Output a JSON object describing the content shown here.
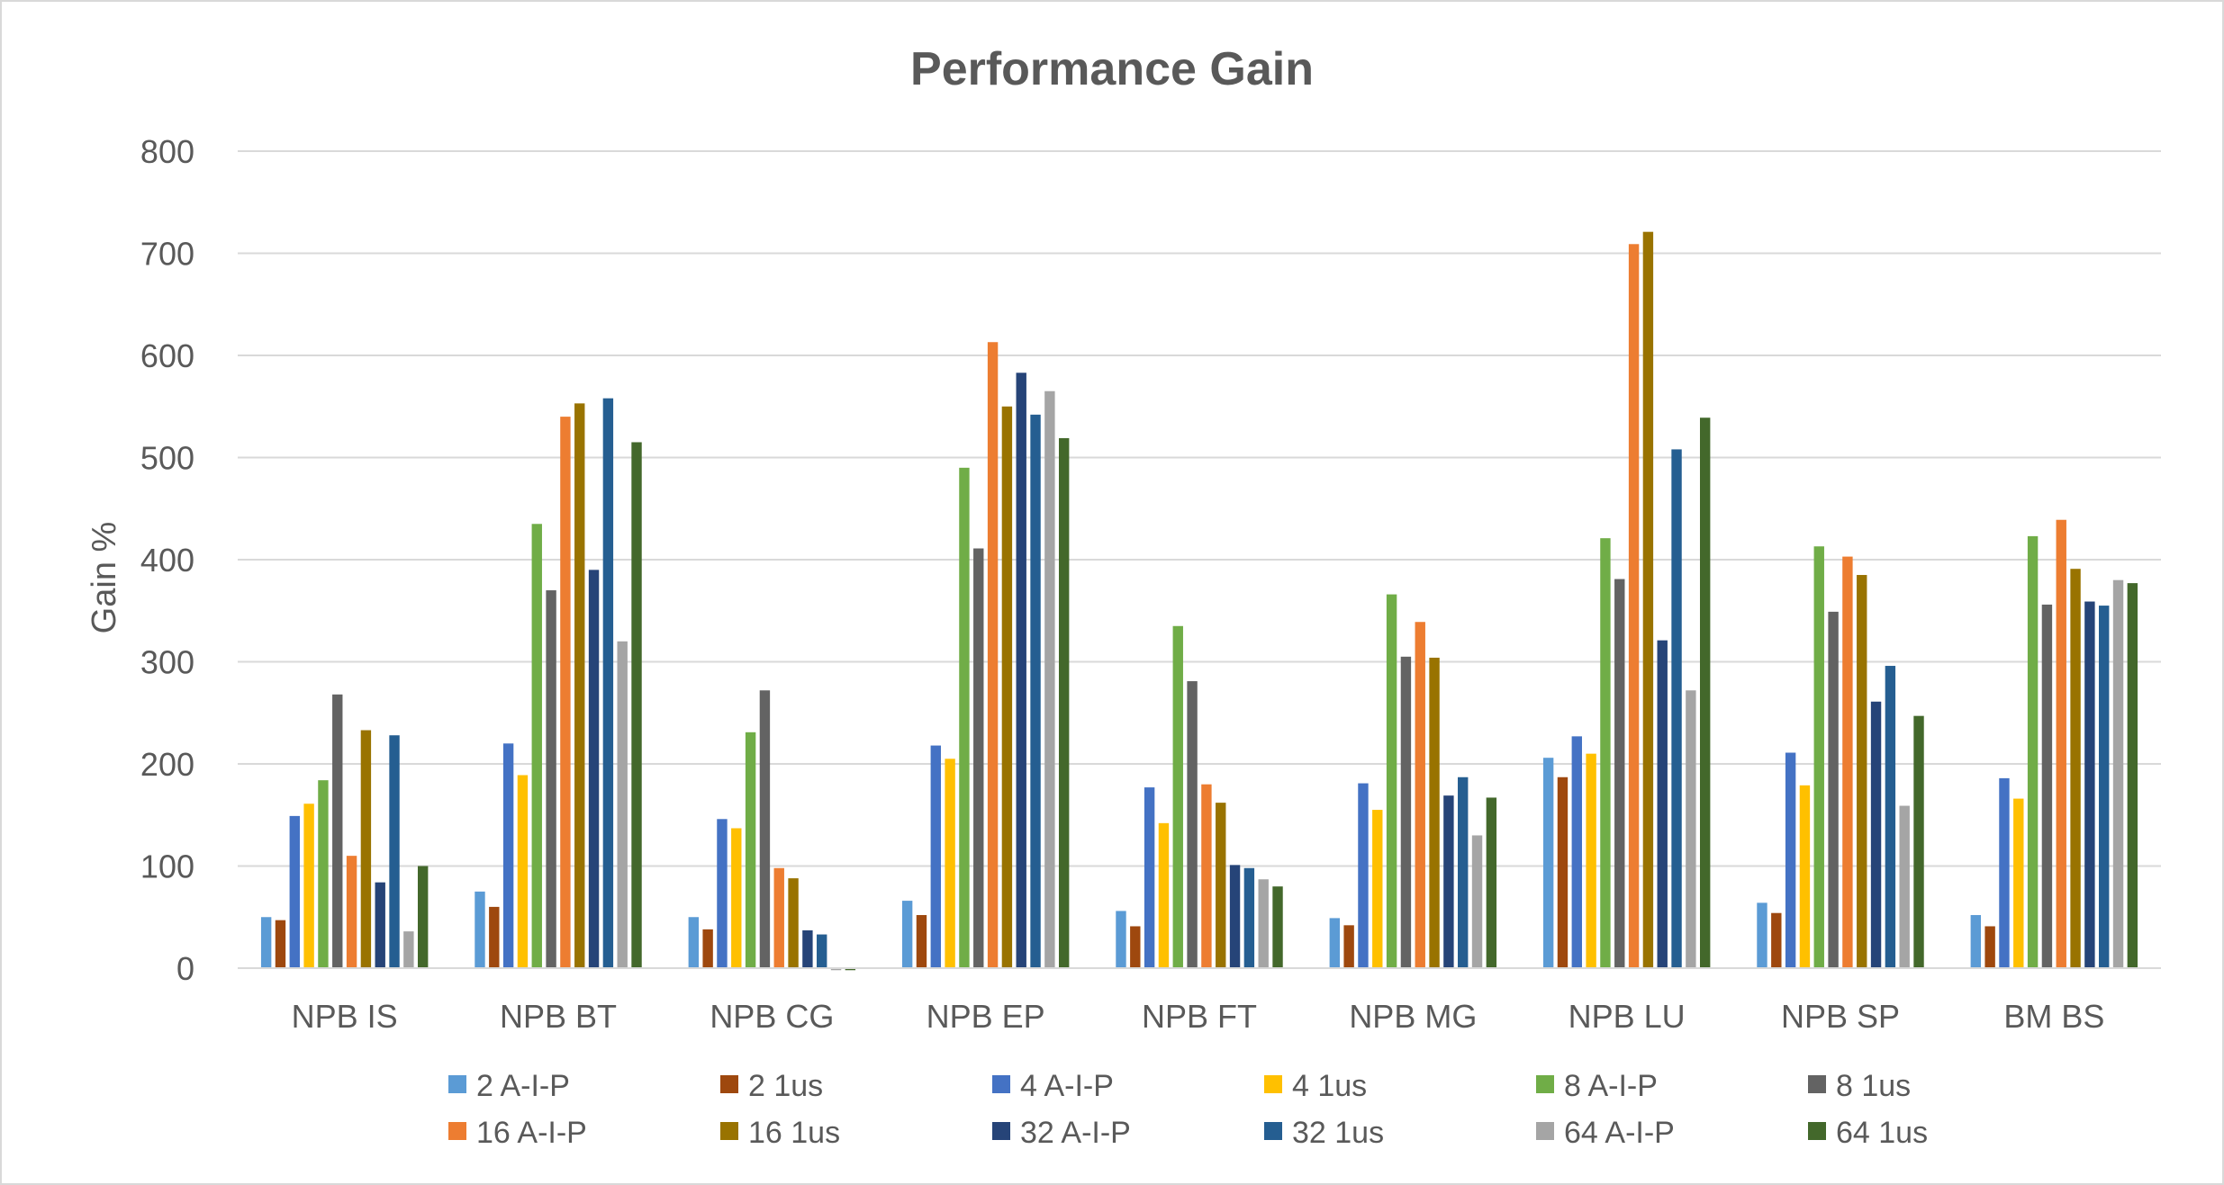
{
  "chart_data": {
    "type": "bar",
    "title": "Performance Gain",
    "xlabel": "",
    "ylabel": "Gain %",
    "ylim": [
      0,
      800
    ],
    "yticks": [
      0,
      100,
      200,
      300,
      400,
      500,
      600,
      700,
      800
    ],
    "grid": true,
    "legend_position": "bottom",
    "categories": [
      "NPB IS",
      "NPB BT",
      "NPB CG",
      "NPB EP",
      "NPB FT",
      "NPB MG",
      "NPB LU",
      "NPB SP",
      "BM BS"
    ],
    "series": [
      {
        "name": "2 A-I-P",
        "color": "#5b9bd5",
        "values": [
          50,
          75,
          50,
          66,
          56,
          49,
          206,
          64,
          52
        ]
      },
      {
        "name": "2 1us",
        "color": "#9e480e",
        "values": [
          47,
          60,
          38,
          52,
          41,
          42,
          187,
          54,
          41
        ]
      },
      {
        "name": "4 A-I-P",
        "color": "#4472c4",
        "values": [
          149,
          220,
          146,
          218,
          177,
          181,
          227,
          211,
          186
        ]
      },
      {
        "name": "4 1us",
        "color": "#ffc000",
        "values": [
          161,
          189,
          137,
          205,
          142,
          155,
          210,
          179,
          166
        ]
      },
      {
        "name": "8 A-I-P",
        "color": "#70ad47",
        "values": [
          184,
          435,
          231,
          490,
          335,
          366,
          421,
          413,
          423
        ]
      },
      {
        "name": "8 1us",
        "color": "#636363",
        "values": [
          268,
          370,
          272,
          411,
          281,
          305,
          381,
          349,
          356
        ]
      },
      {
        "name": "16 A-I-P",
        "color": "#ed7d31",
        "values": [
          110,
          540,
          98,
          613,
          180,
          339,
          709,
          403,
          439
        ]
      },
      {
        "name": "16 1us",
        "color": "#997300",
        "values": [
          233,
          553,
          88,
          550,
          162,
          304,
          721,
          385,
          391
        ]
      },
      {
        "name": "32 A-I-P",
        "color": "#264478",
        "values": [
          84,
          390,
          37,
          583,
          101,
          169,
          321,
          261,
          359
        ]
      },
      {
        "name": "32 1us",
        "color": "#255e91",
        "values": [
          228,
          558,
          33,
          542,
          98,
          187,
          508,
          296,
          355
        ]
      },
      {
        "name": "64 A-I-P",
        "color": "#a5a5a5",
        "values": [
          36,
          320,
          -2,
          565,
          87,
          130,
          272,
          159,
          380
        ]
      },
      {
        "name": "64 1us",
        "color": "#43682b",
        "values": [
          100,
          515,
          -2,
          519,
          80,
          167,
          539,
          247,
          377
        ]
      }
    ]
  }
}
